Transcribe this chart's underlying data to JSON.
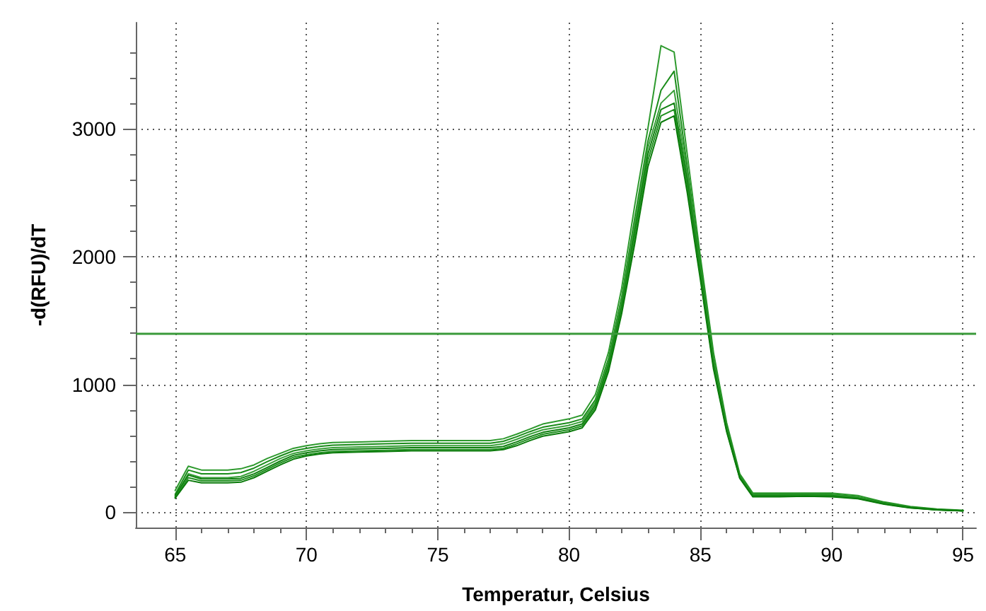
{
  "chart_data": {
    "type": "line",
    "xlabel": "Temperatur, Celsius",
    "ylabel": "-d(RFU)/dT",
    "x": [
      65,
      65.5,
      66,
      67,
      67.5,
      68,
      68.5,
      69,
      69.5,
      70,
      70.5,
      71,
      72,
      73,
      74,
      75,
      76,
      77,
      77.5,
      78,
      78.5,
      79,
      80,
      80.5,
      81,
      81.5,
      82,
      82.5,
      83,
      83.5,
      84,
      84.5,
      85,
      85.5,
      86,
      86.5,
      87,
      88,
      89,
      90,
      91,
      92,
      93,
      94,
      95
    ],
    "series": [
      {
        "color": "#2e9a2e",
        "values": [
          170,
          360,
          330,
          330,
          340,
          370,
          420,
          460,
          500,
          520,
          535,
          545,
          550,
          555,
          560,
          560,
          560,
          560,
          575,
          610,
          650,
          690,
          730,
          760,
          920,
          1250,
          1750,
          2400,
          3000,
          3650,
          3600,
          2800,
          2000,
          1250,
          700,
          300,
          150,
          150,
          150,
          150,
          130,
          80,
          45,
          25,
          15
        ]
      },
      {
        "color": "#1a8c1a",
        "values": [
          140,
          330,
          300,
          300,
          310,
          345,
          395,
          440,
          480,
          500,
          515,
          525,
          530,
          535,
          540,
          540,
          540,
          540,
          555,
          590,
          630,
          665,
          700,
          730,
          880,
          1200,
          1680,
          2300,
          2900,
          3300,
          3450,
          2700,
          1950,
          1200,
          680,
          290,
          140,
          140,
          145,
          140,
          120,
          75,
          40,
          22,
          12
        ]
      },
      {
        "color": "#3aa03a",
        "values": [
          120,
          300,
          270,
          270,
          280,
          320,
          370,
          420,
          460,
          480,
          495,
          505,
          510,
          515,
          520,
          520,
          520,
          520,
          535,
          570,
          610,
          645,
          680,
          710,
          860,
          1170,
          1640,
          2250,
          2850,
          3200,
          3300,
          2650,
          1900,
          1180,
          660,
          280,
          135,
          135,
          140,
          135,
          115,
          70,
          38,
          20,
          12
        ]
      },
      {
        "color": "#108010",
        "values": [
          130,
          290,
          260,
          260,
          265,
          300,
          350,
          400,
          445,
          465,
          480,
          490,
          495,
          500,
          505,
          505,
          505,
          505,
          515,
          550,
          590,
          625,
          660,
          690,
          840,
          1150,
          1610,
          2200,
          2800,
          3150,
          3200,
          2600,
          1880,
          1160,
          650,
          275,
          130,
          130,
          135,
          130,
          110,
          68,
          36,
          20,
          12
        ]
      },
      {
        "color": "#1f901f",
        "values": [
          115,
          270,
          245,
          245,
          250,
          285,
          335,
          385,
          430,
          450,
          465,
          475,
          480,
          485,
          490,
          490,
          490,
          490,
          500,
          535,
          575,
          610,
          645,
          675,
          820,
          1120,
          1580,
          2150,
          2750,
          3100,
          3150,
          2550,
          1850,
          1140,
          640,
          270,
          125,
          125,
          130,
          125,
          108,
          65,
          35,
          18,
          12
        ]
      },
      {
        "color": "#0a7a0a",
        "values": [
          110,
          250,
          230,
          230,
          235,
          270,
          320,
          370,
          415,
          440,
          455,
          465,
          470,
          475,
          480,
          480,
          480,
          480,
          490,
          520,
          560,
          595,
          630,
          660,
          800,
          1100,
          1550,
          2100,
          2700,
          3050,
          3100,
          2500,
          1820,
          1120,
          630,
          265,
          120,
          120,
          125,
          120,
          105,
          62,
          33,
          18,
          10
        ]
      }
    ],
    "xlim": [
      63.5,
      95.5
    ],
    "xticks": [
      65,
      {
        "value": 66,
        "label": null
      },
      {
        "value": 67,
        "label": null
      },
      {
        "value": 68,
        "label": null
      },
      {
        "value": 69,
        "label": null
      },
      70,
      {
        "value": 71,
        "label": null
      },
      {
        "value": 72,
        "label": null
      },
      {
        "value": 73,
        "label": null
      },
      {
        "value": 74,
        "label": null
      },
      75,
      {
        "value": 76,
        "label": null
      },
      {
        "value": 77,
        "label": null
      },
      {
        "value": 78,
        "label": null
      },
      {
        "value": 79,
        "label": null
      },
      80,
      {
        "value": 81,
        "label": null
      },
      {
        "value": 82,
        "label": null
      },
      {
        "value": 83,
        "label": null
      },
      {
        "value": 84,
        "label": null
      },
      85,
      {
        "value": 86,
        "label": null
      },
      {
        "value": 87,
        "label": null
      },
      {
        "value": 88,
        "label": null
      },
      {
        "value": 89,
        "label": null
      },
      90,
      {
        "value": 91,
        "label": null
      },
      {
        "value": 92,
        "label": null
      },
      {
        "value": 93,
        "label": null
      },
      {
        "value": 94,
        "label": null
      },
      95
    ],
    "ylim": [
      -120,
      3830
    ],
    "yticks": [
      0,
      {
        "value": 200,
        "label": null
      },
      {
        "value": 400,
        "label": null
      },
      {
        "value": 600,
        "label": null
      },
      {
        "value": 800,
        "label": null
      },
      1000,
      {
        "value": 1200,
        "label": null
      },
      {
        "value": 1400,
        "label": null
      },
      {
        "value": 1600,
        "label": null
      },
      {
        "value": 1800,
        "label": null
      },
      2000,
      {
        "value": 2200,
        "label": null
      },
      {
        "value": 2400,
        "label": null
      },
      {
        "value": 2600,
        "label": null
      },
      {
        "value": 2800,
        "label": null
      },
      3000,
      {
        "value": 3200,
        "label": null
      },
      {
        "value": 3400,
        "label": null
      },
      {
        "value": 3600,
        "label": null
      }
    ],
    "ref_lines": [
      {
        "axis": "y",
        "value": 1400,
        "color": "#3a9a3a",
        "line_style": "solid"
      }
    ],
    "grid": true,
    "marker": "none",
    "line_style": "solid"
  }
}
